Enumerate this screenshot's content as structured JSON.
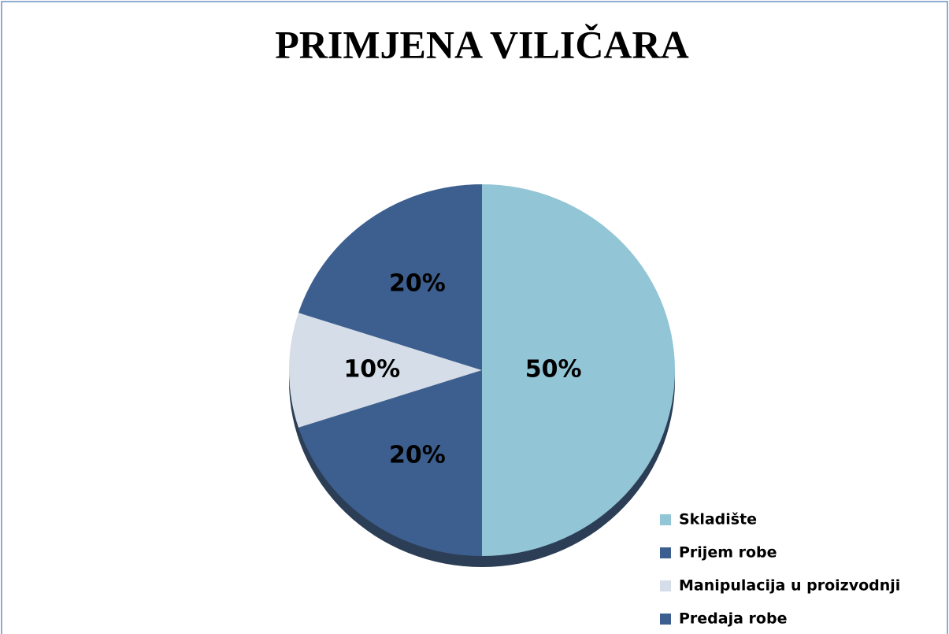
{
  "chart_data": {
    "type": "pie",
    "title": "PRIMJENA VILIČARA",
    "categories": [
      "Skladište",
      "Prijem robe",
      "Manipulacija u proizvodnji",
      "Predaja robe"
    ],
    "values": [
      50,
      20,
      10,
      20
    ],
    "value_labels": [
      "50%",
      "20%",
      "10%",
      "20%"
    ],
    "colors": [
      "#92c5d6",
      "#3d5f8f",
      "#d5dde8",
      "#3d5f8f"
    ],
    "legend": "bottom-right"
  }
}
